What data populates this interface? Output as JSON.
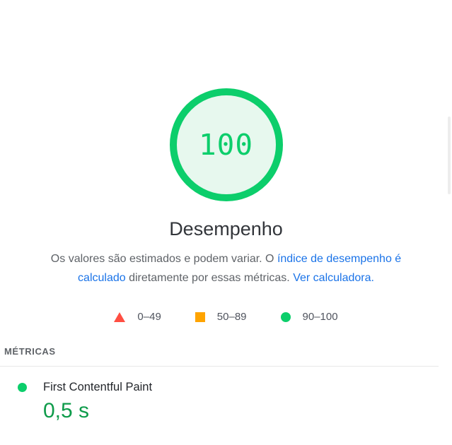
{
  "gauge": {
    "score": "100",
    "label": "Desempenho",
    "ring_color": "#0cce6b",
    "fill_color": "#e7f8ee"
  },
  "disclaimer": {
    "line1": {
      "text": "Os valores são estimados e podem variar. O ",
      "link": "índice de desempenho é"
    },
    "line2": {
      "link_start": "calculado",
      "text": " diretamente por essas métricas. ",
      "link_end": "Ver calculadora."
    },
    "link_color": "#1a73e8"
  },
  "legend": {
    "items": [
      {
        "icon": "triangle-icon",
        "color": "#ff4e42",
        "label": "0–49"
      },
      {
        "icon": "square-icon",
        "color": "#ffa400",
        "label": "50–89"
      },
      {
        "icon": "circle-icon",
        "color": "#0cce6b",
        "label": "90–100"
      }
    ]
  },
  "metrics": {
    "header": "MÉTRICAS",
    "items": [
      {
        "name": "First Contentful Paint",
        "value": "0,5 s",
        "status": "pass",
        "status_color": "#0cce6b",
        "value_color": "#0e9b4a"
      }
    ]
  }
}
